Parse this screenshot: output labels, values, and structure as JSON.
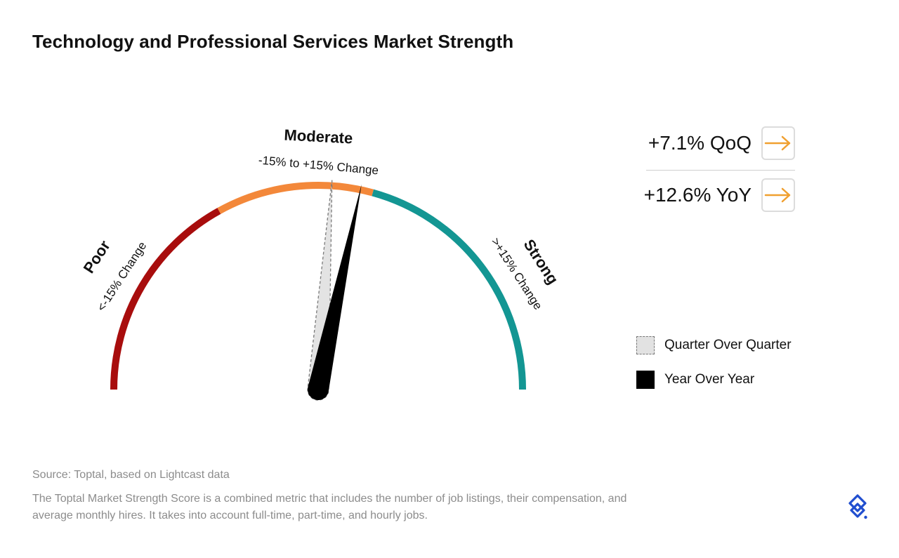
{
  "title": "Technology and Professional Services Market Strength",
  "chart_data": {
    "type": "gauge",
    "scale": "percent change",
    "zones": [
      {
        "name": "Poor",
        "range": "<-15% Change",
        "color": "#a80d0d"
      },
      {
        "name": "Moderate",
        "range": "-15% to +15% Change",
        "color": "#f3883a"
      },
      {
        "name": "Strong",
        "range": ">+15% Change",
        "color": "#139693"
      }
    ],
    "needles": [
      {
        "label": "Quarter Over Quarter",
        "value": 7.1,
        "style": "dashed-grey"
      },
      {
        "label": "Year Over Year",
        "value": 12.6,
        "style": "solid-black"
      }
    ]
  },
  "stats": [
    {
      "label": "+7.1% QoQ",
      "arrow": "right-arrow-icon",
      "color": "#f0a030"
    },
    {
      "label": "+12.6% YoY",
      "arrow": "right-arrow-icon",
      "color": "#f0a030"
    }
  ],
  "legend": [
    {
      "label": "Quarter Over Quarter"
    },
    {
      "label": "Year Over Year"
    }
  ],
  "footer": {
    "source": "Source: Toptal, based on Lightcast data",
    "note": "The Toptal Market Strength Score is a combined metric that includes the number of job listings, their compensation, and average monthly hires. It takes into account full-time, part-time, and hourly jobs."
  },
  "logo": "toptal-logo-icon",
  "brand_color": "#204ecf"
}
